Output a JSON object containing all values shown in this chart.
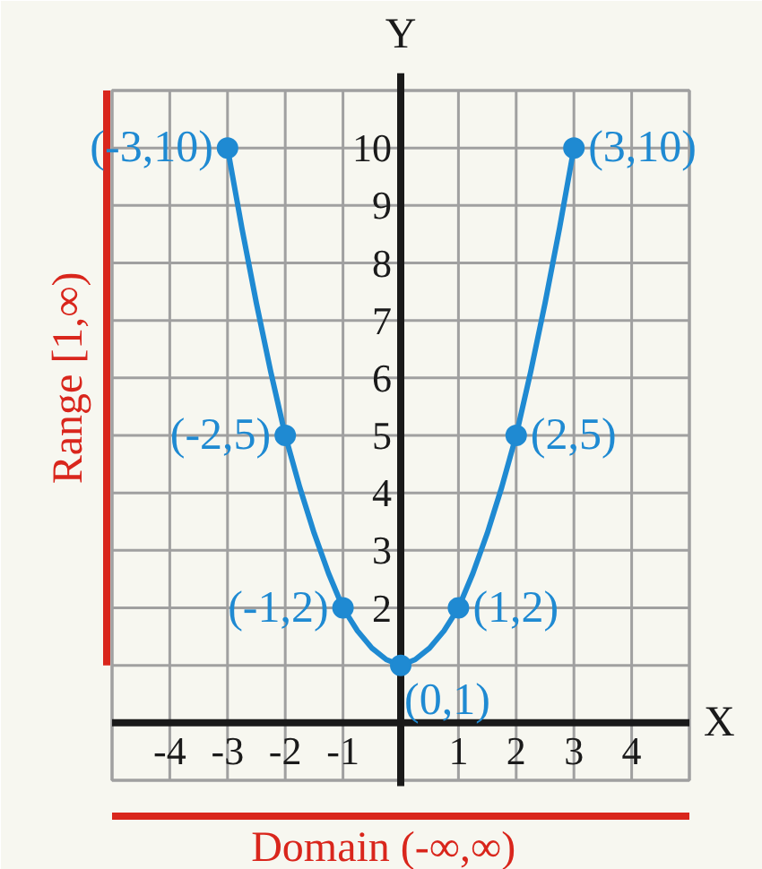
{
  "chart_data": {
    "type": "scatter",
    "xlabel": "X",
    "ylabel": "Y",
    "series": [
      {
        "type": "line",
        "marker": "none",
        "color": "#1f8ad2",
        "x": [
          -3,
          -2.75,
          -2.5,
          -2.25,
          -2,
          -1.75,
          -1.5,
          -1.25,
          -1,
          -0.75,
          -0.5,
          -0.25,
          0,
          0.25,
          0.5,
          0.75,
          1,
          1.25,
          1.5,
          1.75,
          2,
          2.25,
          2.5,
          2.75,
          3
        ],
        "values": [
          10,
          8.6,
          7.3,
          6.1,
          5,
          4.1,
          3.3,
          2.6,
          2,
          1.6,
          1.3,
          1.1,
          1,
          1.1,
          1.3,
          1.6,
          2,
          2.6,
          3.3,
          4.1,
          5,
          6.1,
          7.3,
          8.6,
          10
        ]
      },
      {
        "color": "#1f8ad2",
        "x": [
          -3,
          -2,
          -1,
          0,
          1,
          2,
          3
        ],
        "values": [
          10,
          5,
          2,
          1,
          2,
          5,
          10
        ]
      }
    ],
    "marker": "circle",
    "xlim": [
      -5,
      5
    ],
    "ylim": [
      -1,
      11
    ],
    "xticks": [
      {
        "value": -5,
        "label": null
      },
      -4,
      -3,
      -2,
      -1,
      {
        "value": 0,
        "label": null
      },
      1,
      2,
      3,
      4,
      {
        "value": 5,
        "label": null
      }
    ],
    "yticks": [
      {
        "value": -1,
        "label": null
      },
      {
        "value": 0,
        "label": null
      },
      {
        "value": 1,
        "label": null
      },
      2,
      3,
      4,
      5,
      6,
      7,
      8,
      9,
      10,
      {
        "value": 11,
        "label": null
      }
    ],
    "grid": true,
    "annotations": [
      "Range [1,∞)",
      "Domain (-∞,∞)",
      {
        "text": "(-3,10)",
        "x": -3,
        "y": 10
      },
      {
        "text": "(-2,5)",
        "x": -2,
        "y": 5
      },
      {
        "text": "(-1,2)",
        "x": -1,
        "y": 2
      },
      {
        "text": "(0,1)",
        "x": 0,
        "y": 1
      },
      {
        "text": "(1,2)",
        "x": 1,
        "y": 2
      },
      {
        "text": "(2,5)",
        "x": 2,
        "y": 5
      },
      {
        "text": "(3,10)",
        "x": 3,
        "y": 10
      }
    ]
  }
}
